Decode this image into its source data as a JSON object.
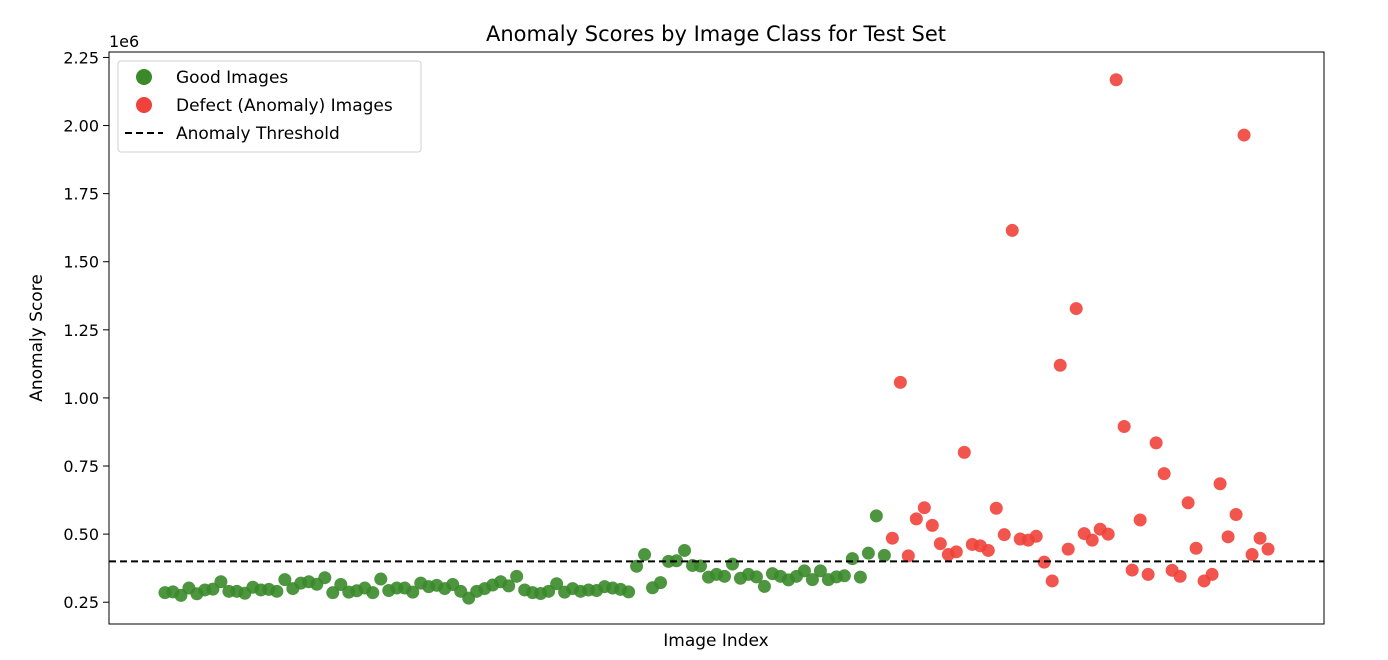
{
  "chart_data": {
    "type": "scatter",
    "title": "Anomaly Scores by Image Class for Test Set",
    "xlabel": "Image Index",
    "ylabel": "Anomaly Score",
    "y_scale_note": "1e6",
    "ylim": [
      170000,
      2270000
    ],
    "xlim": [
      -7,
      145
    ],
    "yticks": [
      250000,
      500000,
      750000,
      1000000,
      1250000,
      1500000,
      1750000,
      2000000,
      2250000
    ],
    "ytick_labels": [
      "0.25",
      "0.50",
      "0.75",
      "1.00",
      "1.25",
      "1.50",
      "1.75",
      "2.00",
      "2.25"
    ],
    "threshold": 400000,
    "legend_position": "upper-left",
    "colors": {
      "good": "#3a8a2a",
      "defect": "#f0423a",
      "threshold": "#000000"
    },
    "legend": [
      {
        "label": "Good Images",
        "kind": "marker",
        "color": "#3a8a2a"
      },
      {
        "label": "Defect (Anomaly) Images",
        "kind": "marker",
        "color": "#f0423a"
      },
      {
        "label": "Anomaly Threshold",
        "kind": "dashed-line",
        "color": "#000000"
      }
    ],
    "series": [
      {
        "name": "Good Images",
        "color": "#3a8a2a",
        "points": [
          [
            0,
            285000
          ],
          [
            1,
            288000
          ],
          [
            2,
            275000
          ],
          [
            3,
            302000
          ],
          [
            4,
            281000
          ],
          [
            5,
            295000
          ],
          [
            6,
            298000
          ],
          [
            7,
            325000
          ],
          [
            8,
            290000
          ],
          [
            9,
            290000
          ],
          [
            10,
            283000
          ],
          [
            11,
            305000
          ],
          [
            12,
            295000
          ],
          [
            13,
            297000
          ],
          [
            14,
            290000
          ],
          [
            15,
            333000
          ],
          [
            16,
            300000
          ],
          [
            17,
            320000
          ],
          [
            18,
            325000
          ],
          [
            19,
            316000
          ],
          [
            20,
            340000
          ],
          [
            21,
            285000
          ],
          [
            22,
            315000
          ],
          [
            23,
            287000
          ],
          [
            24,
            292000
          ],
          [
            25,
            302000
          ],
          [
            26,
            285000
          ],
          [
            27,
            335000
          ],
          [
            28,
            293000
          ],
          [
            29,
            302000
          ],
          [
            30,
            302000
          ],
          [
            31,
            287000
          ],
          [
            32,
            320000
          ],
          [
            33,
            307000
          ],
          [
            34,
            312000
          ],
          [
            35,
            300000
          ],
          [
            36,
            315000
          ],
          [
            37,
            290000
          ],
          [
            38,
            265000
          ],
          [
            39,
            290000
          ],
          [
            40,
            300000
          ],
          [
            41,
            313000
          ],
          [
            42,
            325000
          ],
          [
            43,
            310000
          ],
          [
            44,
            345000
          ],
          [
            45,
            295000
          ],
          [
            46,
            285000
          ],
          [
            47,
            282000
          ],
          [
            48,
            290000
          ],
          [
            49,
            318000
          ],
          [
            50,
            287000
          ],
          [
            51,
            300000
          ],
          [
            52,
            290000
          ],
          [
            53,
            295000
          ],
          [
            54,
            293000
          ],
          [
            55,
            307000
          ],
          [
            56,
            302000
          ],
          [
            57,
            297000
          ],
          [
            58,
            288000
          ],
          [
            59,
            382000
          ],
          [
            60,
            425000
          ],
          [
            61,
            303000
          ],
          [
            62,
            322000
          ],
          [
            63,
            400000
          ],
          [
            64,
            402000
          ],
          [
            65,
            440000
          ],
          [
            66,
            385000
          ],
          [
            67,
            383000
          ],
          [
            68,
            342000
          ],
          [
            69,
            352000
          ],
          [
            70,
            345000
          ],
          [
            71,
            390000
          ],
          [
            72,
            338000
          ],
          [
            73,
            352000
          ],
          [
            74,
            343000
          ],
          [
            75,
            308000
          ],
          [
            76,
            355000
          ],
          [
            77,
            345000
          ],
          [
            78,
            332000
          ],
          [
            79,
            345000
          ],
          [
            80,
            365000
          ],
          [
            81,
            333000
          ],
          [
            82,
            365000
          ],
          [
            83,
            333000
          ],
          [
            84,
            343000
          ],
          [
            85,
            347000
          ],
          [
            86,
            410000
          ],
          [
            87,
            342000
          ],
          [
            88,
            430000
          ],
          [
            89,
            567000
          ],
          [
            90,
            422000
          ]
        ]
      },
      {
        "name": "Defect (Anomaly) Images",
        "color": "#f0423a",
        "points": [
          [
            91,
            485000
          ],
          [
            92,
            1057000
          ],
          [
            93,
            420000
          ],
          [
            94,
            556000
          ],
          [
            95,
            597000
          ],
          [
            96,
            532000
          ],
          [
            97,
            465000
          ],
          [
            98,
            425000
          ],
          [
            99,
            435000
          ],
          [
            100,
            800000
          ],
          [
            101,
            462000
          ],
          [
            102,
            457000
          ],
          [
            103,
            440000
          ],
          [
            104,
            595000
          ],
          [
            105,
            498000
          ],
          [
            106,
            1615000
          ],
          [
            107,
            482000
          ],
          [
            108,
            478000
          ],
          [
            109,
            492000
          ],
          [
            110,
            397000
          ],
          [
            111,
            328000
          ],
          [
            112,
            1120000
          ],
          [
            113,
            445000
          ],
          [
            114,
            1328000
          ],
          [
            115,
            502000
          ],
          [
            116,
            478000
          ],
          [
            117,
            518000
          ],
          [
            118,
            500000
          ],
          [
            119,
            2168000
          ],
          [
            120,
            895000
          ],
          [
            121,
            368000
          ],
          [
            122,
            552000
          ],
          [
            123,
            352000
          ],
          [
            124,
            835000
          ],
          [
            125,
            722000
          ],
          [
            126,
            367000
          ],
          [
            127,
            345000
          ],
          [
            128,
            615000
          ],
          [
            129,
            448000
          ],
          [
            130,
            328000
          ],
          [
            131,
            352000
          ],
          [
            132,
            685000
          ],
          [
            133,
            490000
          ],
          [
            134,
            572000
          ],
          [
            135,
            1965000
          ],
          [
            136,
            425000
          ],
          [
            137,
            485000
          ],
          [
            138,
            445000
          ]
        ]
      }
    ]
  }
}
